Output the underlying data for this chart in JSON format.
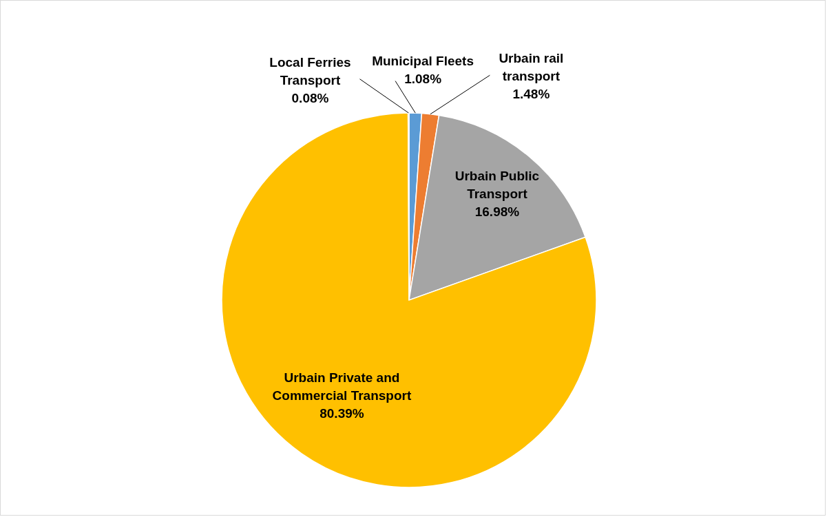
{
  "chart_data": {
    "type": "pie",
    "categories": [
      "Municipal Fleets",
      "Urbain rail transport",
      "Urbain Public Transport",
      "Urbain Private and Commercial Transport",
      "Local Ferries Transport"
    ],
    "values": [
      1.08,
      1.48,
      16.98,
      80.39,
      0.08
    ],
    "colors": [
      "#5b9bd5",
      "#ed7d31",
      "#a5a5a5",
      "#ffc000",
      "#4472c4"
    ],
    "value_labels": [
      "1.08%",
      "1.48%",
      "16.98%",
      "80.39%",
      "0.08%"
    ]
  }
}
